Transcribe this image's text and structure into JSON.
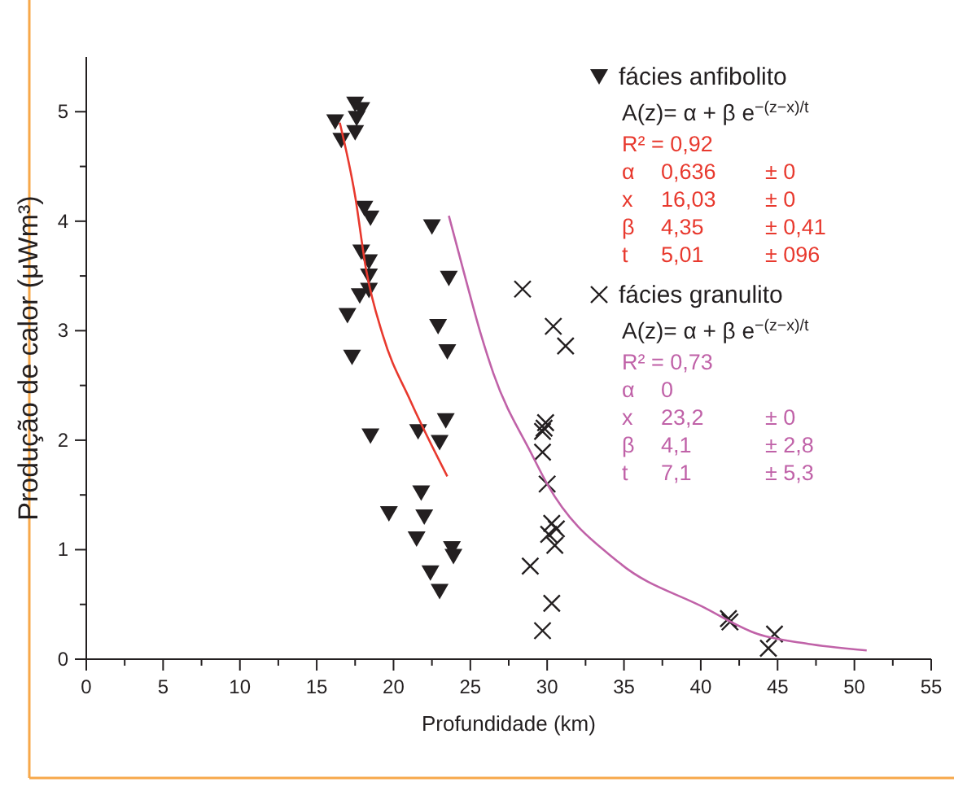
{
  "chart_data": {
    "type": "scatter",
    "xlabel": "Profundidade (km)",
    "ylabel": "Produção de calor (μWm³)",
    "xlim": [
      0,
      55
    ],
    "ylim": [
      0,
      5.5
    ],
    "xticks": [
      0,
      {
        "value": 2.5,
        "label": null
      },
      5,
      {
        "value": 7.5,
        "label": null
      },
      10,
      {
        "value": 12.5,
        "label": null
      },
      15,
      {
        "value": 17.5,
        "label": null
      },
      20,
      {
        "value": 22.5,
        "label": null
      },
      25,
      {
        "value": 27.5,
        "label": null
      },
      30,
      {
        "value": 32.5,
        "label": null
      },
      35,
      {
        "value": 37.5,
        "label": null
      },
      40,
      {
        "value": 42.5,
        "label": null
      },
      45,
      {
        "value": 47.5,
        "label": null
      },
      50,
      {
        "value": 52.5,
        "label": null
      },
      55
    ],
    "yticks": [
      0,
      {
        "value": 0.5,
        "label": null
      },
      1,
      {
        "value": 1.5,
        "label": null
      },
      2,
      {
        "value": 2.5,
        "label": null
      },
      3,
      {
        "value": 3.5,
        "label": null
      },
      4,
      {
        "value": 4.5,
        "label": null
      },
      5
    ],
    "grid": false,
    "legend": "top right",
    "series": [
      {
        "name": "fácies anfibolito",
        "marker": "triangle",
        "color": "#231f20",
        "x": [
          17.5,
          17.9,
          16.2,
          17.6,
          17.5,
          16.6,
          18.1,
          18.5,
          22.5,
          17.9,
          18.4,
          18.4,
          23.6,
          17.8,
          18.4,
          17.0,
          22.9,
          23.5,
          17.3,
          23.4,
          18.5,
          21.6,
          23.0,
          21.8,
          19.7,
          22.0,
          21.5,
          23.8,
          23.9,
          22.4,
          23.0
        ],
        "values": [
          5.07,
          5.02,
          4.91,
          4.94,
          4.81,
          4.74,
          4.12,
          4.03,
          3.95,
          3.72,
          3.63,
          3.5,
          3.48,
          3.32,
          3.37,
          3.14,
          3.04,
          2.81,
          2.76,
          2.18,
          2.04,
          2.08,
          1.98,
          1.52,
          1.33,
          1.3,
          1.1,
          1.01,
          0.94,
          0.79,
          0.62
        ]
      },
      {
        "name": "fácies granulito",
        "marker": "cross",
        "color": "#231f20",
        "x": [
          28.4,
          30.4,
          31.2,
          29.8,
          29.7,
          29.9,
          29.7,
          30.0,
          30.3,
          30.6,
          30.1,
          30.5,
          28.9,
          30.3,
          29.7,
          41.8,
          41.9,
          44.8,
          44.4
        ],
        "values": [
          3.38,
          3.04,
          2.86,
          2.11,
          2.08,
          2.16,
          1.89,
          1.6,
          1.24,
          1.19,
          1.14,
          1.04,
          0.85,
          0.51,
          0.26,
          0.37,
          0.34,
          0.23,
          0.1
        ]
      },
      {
        "type": "line",
        "marker": "none",
        "color": "#e8392e",
        "x": [
          16.5,
          17.5,
          18.2,
          19.3,
          21.1,
          23.5
        ],
        "values": [
          4.9,
          4.23,
          3.57,
          2.96,
          2.36,
          1.67
        ]
      },
      {
        "type": "line",
        "marker": "none",
        "color": "#c062a8",
        "x": [
          23.6,
          24.7,
          25.7,
          26.5,
          29.0,
          30.0,
          34.7,
          40.1,
          43.7,
          47.0,
          50.8
        ],
        "values": [
          4.05,
          3.47,
          2.96,
          2.61,
          1.87,
          1.6,
          0.88,
          0.48,
          0.23,
          0.14,
          0.08
        ]
      }
    ],
    "annotations": [
      "A(z)= α + β e$^{−(z−x)/t}$",
      "R² = 0,92",
      "α\t0,636\t± 0",
      "x\t16,03\t± 0",
      "β\t4,35\t± 0,41",
      "t\t5,01\t± 096",
      "A(z)= α + β e$^{−(z−x)/t}$",
      "R² = 0,73",
      "α\t0",
      "x\t23,2\t± 0",
      "β\t4,1\t± 2,8",
      "t\t7,1\t± 5,3"
    ]
  }
}
